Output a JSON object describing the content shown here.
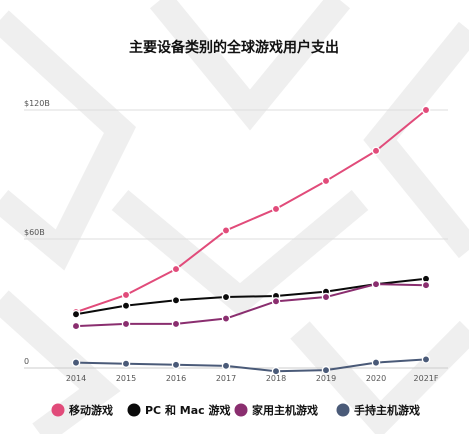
{
  "chart_data": {
    "type": "line",
    "title": "主要设备类别的全球游戏用户支出",
    "xlabel": "",
    "ylabel": "",
    "x": [
      "2014",
      "2015",
      "2016",
      "2017",
      "2018",
      "2019",
      "2020",
      "2021F"
    ],
    "y_ticks": [
      {
        "value": 0,
        "label": "0"
      },
      {
        "value": 60,
        "label": "$60B"
      },
      {
        "value": 120,
        "label": "$120B"
      }
    ],
    "ylim": [
      0,
      120
    ],
    "grid": true,
    "legend_position": "bottom",
    "series": [
      {
        "name": "移动游戏",
        "color": "#e14b7a",
        "values": [
          26,
          34,
          46,
          64,
          74,
          87,
          101,
          120
        ]
      },
      {
        "name": "PC 和 Mac 游戏",
        "color": "#0a0a0a",
        "values": [
          25,
          29,
          31.5,
          33,
          33.5,
          35.5,
          39,
          41.5
        ]
      },
      {
        "name": "家用主机游戏",
        "color": "#8a2e6f",
        "values": [
          19.5,
          20.5,
          20.5,
          23,
          31,
          33,
          39,
          38.5
        ]
      },
      {
        "name": "手持主机游戏",
        "color": "#4a5a78",
        "values": [
          2.5,
          2,
          1.5,
          1,
          -1.5,
          -1,
          2.5,
          4
        ]
      }
    ]
  }
}
